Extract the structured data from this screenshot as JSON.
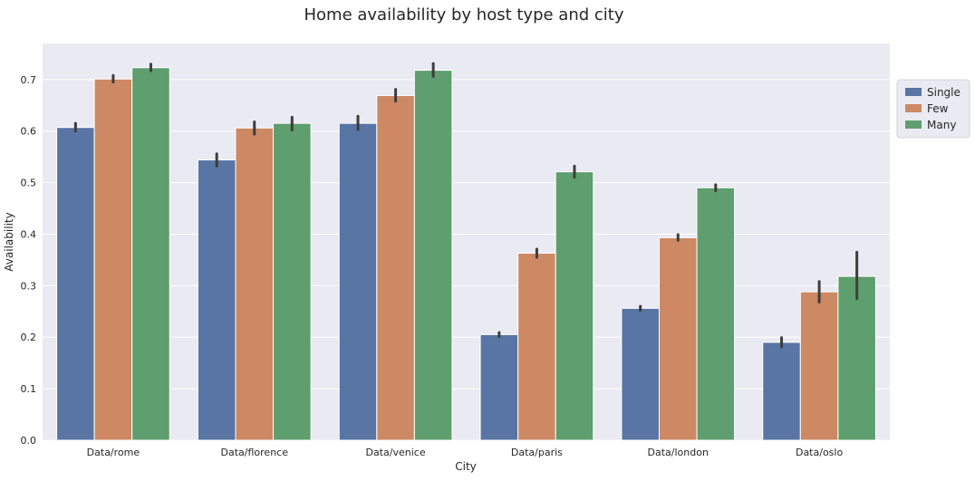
{
  "chart_data": {
    "type": "bar",
    "title": "Home availability by host type and city",
    "xlabel": "City",
    "ylabel": "Availability",
    "ylim": [
      0,
      0.77
    ],
    "yticks": [
      0.0,
      0.1,
      0.2,
      0.3,
      0.4,
      0.5,
      0.6,
      0.7
    ],
    "ytick_labels": [
      "0.0",
      "0.1",
      "0.2",
      "0.3",
      "0.4",
      "0.5",
      "0.6",
      "0.7"
    ],
    "grid": true,
    "legend_position": "upper-right-outside",
    "categories": [
      "Data/rome",
      "Data/florence",
      "Data/venice",
      "Data/paris",
      "Data/london",
      "Data/oslo"
    ],
    "series": [
      {
        "name": "Single",
        "color": "#5875a4",
        "values": [
          0.607,
          0.544,
          0.615,
          0.205,
          0.256,
          0.19
        ],
        "error_low": [
          0.6,
          0.532,
          0.603,
          0.201,
          0.252,
          0.181
        ],
        "error_high": [
          0.615,
          0.556,
          0.629,
          0.209,
          0.26,
          0.199
        ]
      },
      {
        "name": "Few",
        "color": "#cc8963",
        "values": [
          0.701,
          0.606,
          0.669,
          0.363,
          0.393,
          0.288
        ],
        "error_low": [
          0.695,
          0.594,
          0.658,
          0.355,
          0.388,
          0.268
        ],
        "error_high": [
          0.708,
          0.618,
          0.681,
          0.371,
          0.399,
          0.308
        ]
      },
      {
        "name": "Many",
        "color": "#5f9e6e",
        "values": [
          0.723,
          0.615,
          0.718,
          0.521,
          0.49,
          0.318
        ],
        "error_low": [
          0.717,
          0.602,
          0.706,
          0.51,
          0.484,
          0.275
        ],
        "error_high": [
          0.73,
          0.627,
          0.731,
          0.532,
          0.496,
          0.365
        ]
      }
    ]
  },
  "colors": {
    "plot_background": "#eaeaf2",
    "grid": "#ffffff",
    "error_bar": "#3d3d3d"
  }
}
